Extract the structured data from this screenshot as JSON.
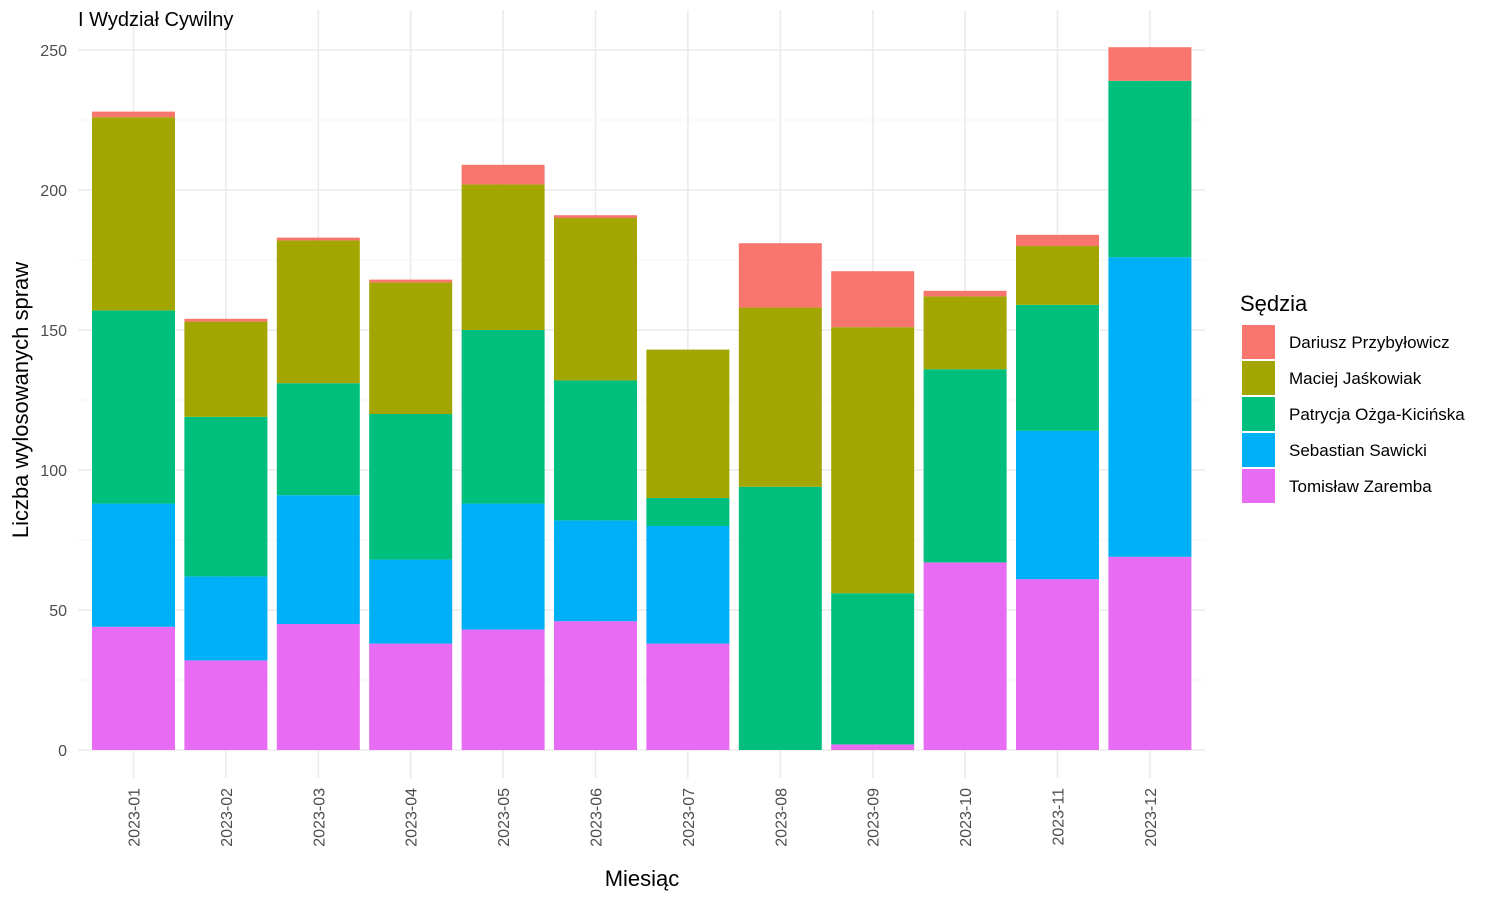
{
  "chart_data": {
    "type": "bar",
    "stacked": true,
    "title": "I Wydział Cywilny",
    "xlabel": "Miesiąc",
    "ylabel": "Liczba wylosowanych spraw",
    "ylim": [
      0,
      260
    ],
    "yticks": [
      0,
      50,
      100,
      150,
      200,
      250
    ],
    "grid": true,
    "legend_title": "Sędzia",
    "legend_position": "right",
    "categories": [
      "2023-01",
      "2023-02",
      "2023-03",
      "2023-04",
      "2023-05",
      "2023-06",
      "2023-07",
      "2023-08",
      "2023-09",
      "2023-10",
      "2023-11",
      "2023-12"
    ],
    "series": [
      {
        "name": "Dariusz Przybyłowicz",
        "color": "#F8766D",
        "values": [
          2,
          1,
          1,
          1,
          7,
          1,
          0,
          23,
          20,
          2,
          4,
          12
        ]
      },
      {
        "name": "Maciej Jaśkowiak",
        "color": "#A3A500",
        "values": [
          69,
          34,
          51,
          47,
          52,
          58,
          53,
          64,
          95,
          26,
          21,
          0
        ]
      },
      {
        "name": "Patrycja Ożga-Kicińska",
        "color": "#00BF7D",
        "values": [
          69,
          57,
          40,
          52,
          62,
          50,
          10,
          94,
          54,
          69,
          45,
          63
        ]
      },
      {
        "name": "Sebastian Sawicki",
        "color": "#00B0F6",
        "values": [
          44,
          30,
          46,
          30,
          45,
          36,
          42,
          0,
          0,
          0,
          53,
          107
        ]
      },
      {
        "name": "Tomisław Zaremba",
        "color": "#E76BF3",
        "values": [
          44,
          32,
          45,
          38,
          43,
          46,
          38,
          0,
          2,
          67,
          61,
          69
        ]
      }
    ]
  }
}
